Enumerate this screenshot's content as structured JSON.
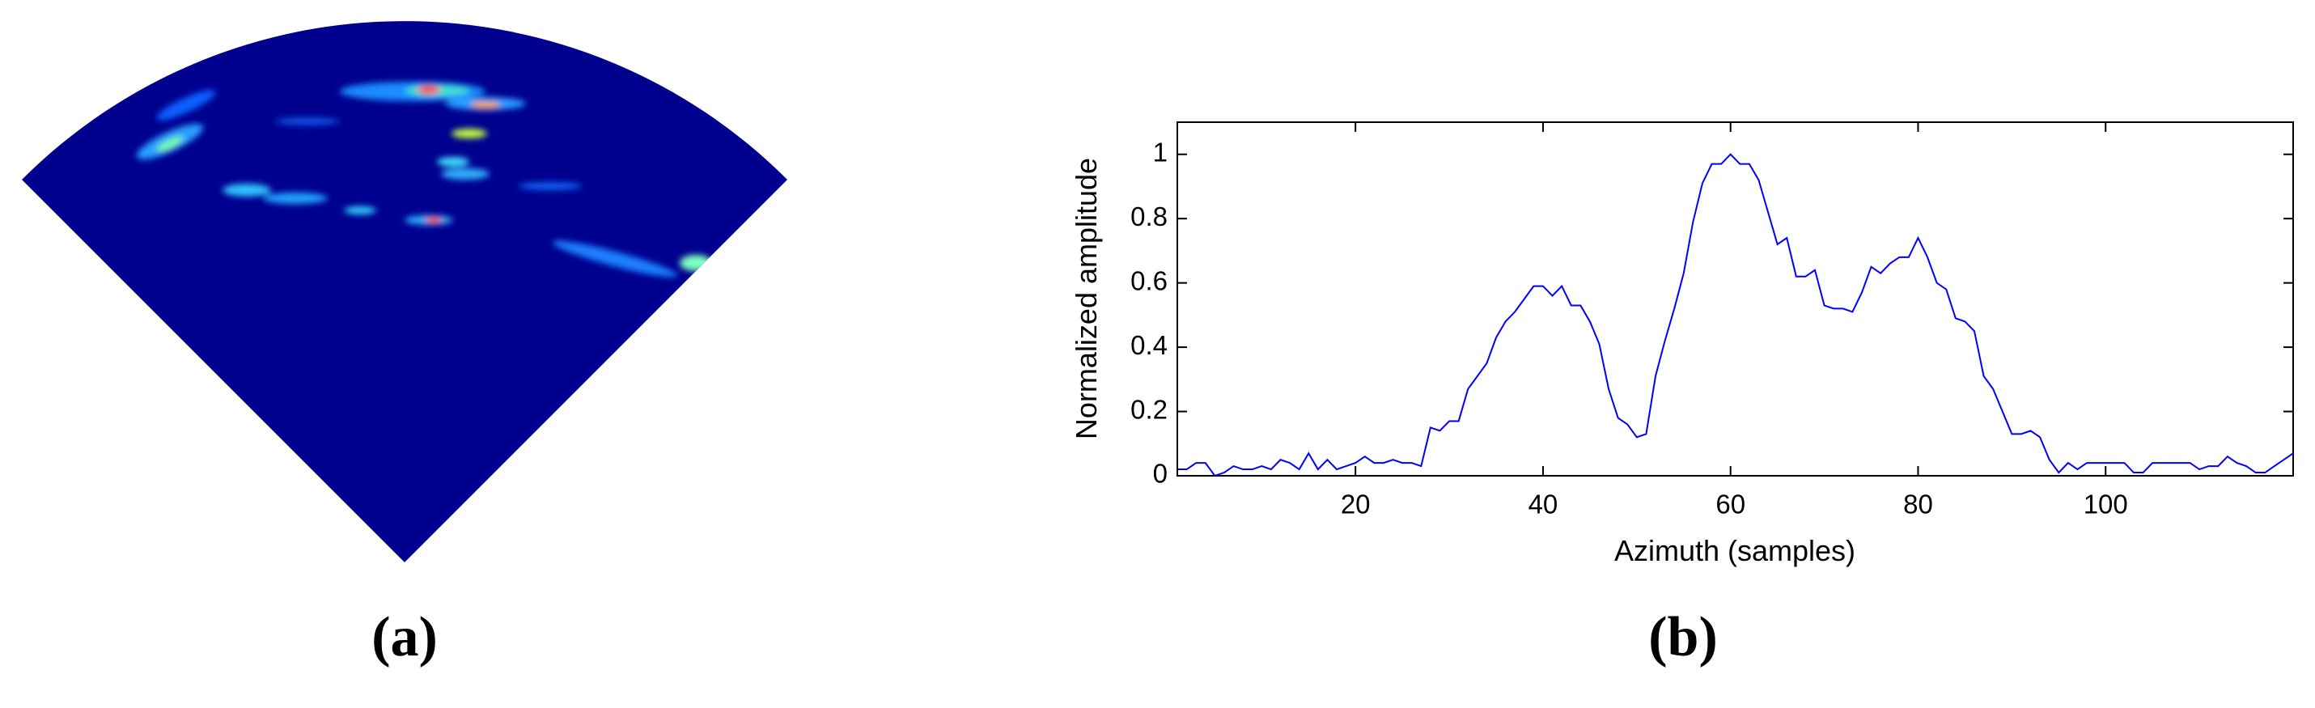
{
  "panel_labels": [
    "(a)",
    "(b)"
  ],
  "chart_data": {
    "type": "line",
    "xlabel": "Azimuth (samples)",
    "ylabel": "Normalized amplitude",
    "xlim": [
      1,
      120
    ],
    "ylim": [
      0,
      1.1
    ],
    "xticks": [
      20,
      40,
      60,
      80,
      100
    ],
    "yticks": [
      0,
      0.2,
      0.4,
      0.6,
      0.8,
      1
    ],
    "grid": false,
    "x": [
      1,
      2,
      3,
      4,
      5,
      6,
      7,
      8,
      9,
      10,
      11,
      12,
      13,
      14,
      15,
      16,
      17,
      18,
      19,
      20,
      21,
      22,
      23,
      24,
      25,
      26,
      27,
      28,
      29,
      30,
      31,
      32,
      33,
      34,
      35,
      36,
      37,
      38,
      39,
      40,
      41,
      42,
      43,
      44,
      45,
      46,
      47,
      48,
      49,
      50,
      51,
      52,
      53,
      54,
      55,
      56,
      57,
      58,
      59,
      60,
      61,
      62,
      63,
      64,
      65,
      66,
      67,
      68,
      69,
      70,
      71,
      72,
      73,
      74,
      75,
      76,
      77,
      78,
      79,
      80,
      81,
      82,
      83,
      84,
      85,
      86,
      87,
      88,
      89,
      90,
      91,
      92,
      93,
      94,
      95,
      96,
      97,
      98,
      99,
      100,
      101,
      102,
      103,
      104,
      105,
      106,
      107,
      108,
      109,
      110,
      111,
      112,
      113,
      114,
      115,
      116,
      117,
      118,
      119,
      120
    ],
    "series": [
      {
        "name": "amplitude",
        "color": "#0000ff",
        "values": [
          0.02,
          0.02,
          0.04,
          0.04,
          0.0,
          0.01,
          0.03,
          0.02,
          0.02,
          0.03,
          0.02,
          0.05,
          0.04,
          0.02,
          0.07,
          0.02,
          0.05,
          0.02,
          0.03,
          0.04,
          0.06,
          0.04,
          0.04,
          0.05,
          0.04,
          0.04,
          0.03,
          0.15,
          0.14,
          0.17,
          0.17,
          0.27,
          0.31,
          0.35,
          0.43,
          0.48,
          0.51,
          0.55,
          0.59,
          0.59,
          0.56,
          0.59,
          0.53,
          0.53,
          0.48,
          0.41,
          0.27,
          0.18,
          0.16,
          0.12,
          0.13,
          0.31,
          0.42,
          0.52,
          0.63,
          0.79,
          0.91,
          0.97,
          0.97,
          1.0,
          0.97,
          0.97,
          0.92,
          0.82,
          0.72,
          0.74,
          0.62,
          0.62,
          0.64,
          0.53,
          0.52,
          0.52,
          0.51,
          0.57,
          0.65,
          0.63,
          0.66,
          0.68,
          0.68,
          0.74,
          0.68,
          0.6,
          0.58,
          0.49,
          0.48,
          0.45,
          0.31,
          0.27,
          0.2,
          0.13,
          0.13,
          0.14,
          0.12,
          0.05,
          0.01,
          0.04,
          0.02,
          0.04,
          0.04,
          0.04,
          0.04,
          0.04,
          0.01,
          0.01,
          0.04,
          0.04,
          0.04,
          0.04,
          0.04,
          0.02,
          0.03,
          0.03,
          0.06,
          0.04,
          0.03,
          0.01,
          0.01,
          0.03,
          0.05,
          0.07
        ]
      }
    ]
  }
}
